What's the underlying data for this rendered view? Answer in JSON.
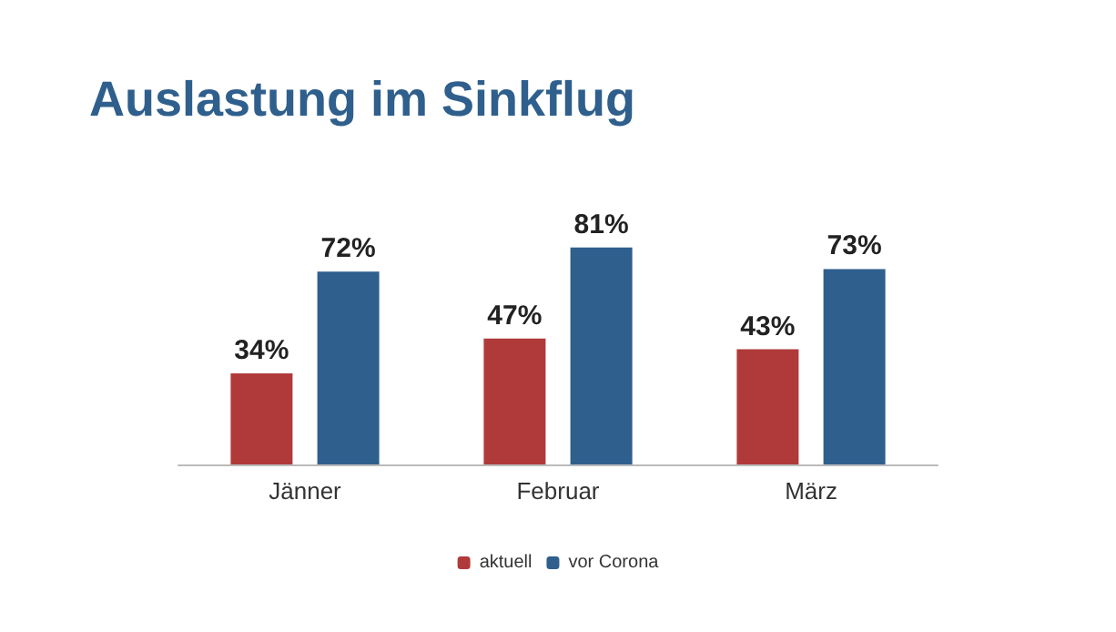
{
  "chart_data": {
    "type": "bar",
    "title": "Auslastung im Sinkflug",
    "categories": [
      "Jänner",
      "Februar",
      "März"
    ],
    "series": [
      {
        "name": "aktuell",
        "color": "#b03a3a",
        "values": [
          34,
          47,
          43
        ],
        "value_labels": [
          "34%",
          "47%",
          "43%"
        ]
      },
      {
        "name": "vor Corona",
        "color": "#2f5f8c",
        "values": [
          72,
          81,
          73
        ],
        "value_labels": [
          "72%",
          "81%",
          "73%"
        ]
      }
    ],
    "legend": "bottom",
    "grid": false,
    "tick_labels": "x"
  }
}
